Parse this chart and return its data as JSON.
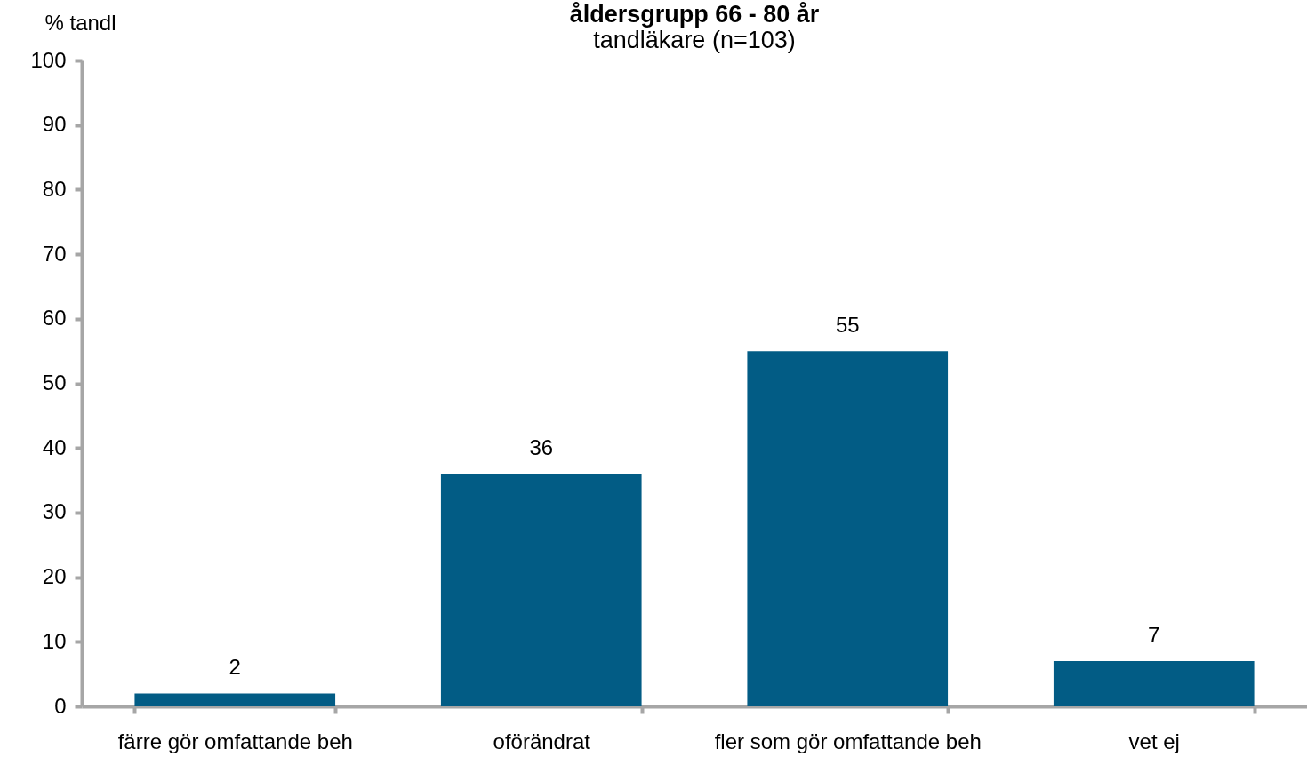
{
  "chart_data": {
    "type": "bar",
    "title": "åldersgrupp 66 - 80 år",
    "subtitle": "tandläkare (n=103)",
    "ylabel": "% tandl",
    "categories": [
      "färre gör omfattande beh",
      "oförändrat",
      "fler som gör omfattande beh",
      "vet ej"
    ],
    "values": [
      2,
      36,
      55,
      7
    ],
    "color": "#025c85",
    "ylim": [
      0,
      100
    ],
    "yticks": [
      0,
      10,
      20,
      30,
      40,
      50,
      60,
      70,
      80,
      90,
      100
    ],
    "data_labels": true
  }
}
